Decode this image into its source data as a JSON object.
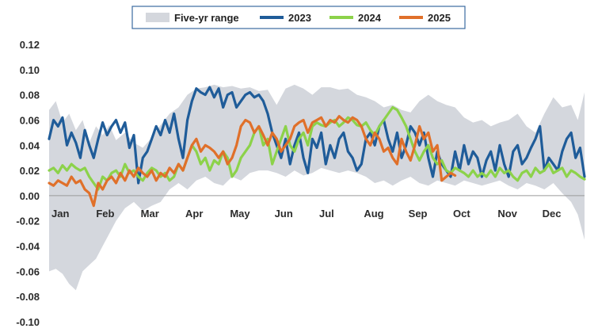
{
  "chart_data": {
    "type": "line",
    "title": "",
    "xlabel": "",
    "ylabel": "",
    "ylim": [
      -0.1,
      0.12
    ],
    "ytick_step": 0.02,
    "yticks": [
      "0.12",
      "0.10",
      "0.08",
      "0.06",
      "0.04",
      "0.02",
      "0.00",
      "-0.02",
      "-0.04",
      "-0.06",
      "-0.08",
      "-0.10"
    ],
    "month_labels": [
      "Jan",
      "Feb",
      "Mar",
      "Apr",
      "May",
      "Jun",
      "Jul",
      "Aug",
      "Sep",
      "Oct",
      "Nov",
      "Dec"
    ],
    "x_unit": "month index (0 = Jan 1, 12 = Dec 31)",
    "legend_position": "top-center",
    "range": {
      "name": "Five-yr range",
      "color": "#d4d7dd",
      "x": [
        0,
        0.15,
        0.3,
        0.45,
        0.6,
        0.75,
        0.9,
        1.05,
        1.2,
        1.35,
        1.5,
        1.7,
        1.9,
        2.1,
        2.3,
        2.5,
        2.7,
        2.9,
        3.1,
        3.3,
        3.5,
        3.7,
        3.9,
        4.1,
        4.3,
        4.5,
        4.7,
        4.9,
        5.1,
        5.3,
        5.5,
        5.7,
        5.9,
        6.1,
        6.3,
        6.5,
        6.7,
        6.9,
        7.1,
        7.3,
        7.5,
        7.7,
        7.9,
        8.1,
        8.3,
        8.5,
        8.7,
        8.9,
        9.1,
        9.3,
        9.5,
        9.7,
        9.9,
        10.1,
        10.3,
        10.5,
        10.7,
        10.9,
        11.1,
        11.3,
        11.5,
        11.7,
        11.85,
        12
      ],
      "high": [
        0.068,
        0.075,
        0.058,
        0.065,
        0.052,
        0.06,
        0.042,
        0.055,
        0.048,
        0.056,
        0.044,
        0.05,
        0.042,
        0.038,
        0.046,
        0.056,
        0.065,
        0.07,
        0.08,
        0.085,
        0.086,
        0.088,
        0.086,
        0.087,
        0.085,
        0.086,
        0.083,
        0.084,
        0.072,
        0.085,
        0.088,
        0.085,
        0.08,
        0.086,
        0.086,
        0.084,
        0.085,
        0.08,
        0.078,
        0.075,
        0.07,
        0.072,
        0.068,
        0.066,
        0.075,
        0.08,
        0.075,
        0.072,
        0.07,
        0.062,
        0.058,
        0.06,
        0.055,
        0.058,
        0.06,
        0.065,
        0.055,
        0.05,
        0.065,
        0.078,
        0.07,
        0.072,
        0.06,
        0.082
      ],
      "low": [
        -0.06,
        -0.058,
        -0.062,
        -0.07,
        -0.075,
        -0.06,
        -0.055,
        -0.05,
        -0.04,
        -0.03,
        -0.02,
        -0.01,
        -0.005,
        -0.012,
        -0.008,
        -0.005,
        0.005,
        0.01,
        0.005,
        0.012,
        0.015,
        0.01,
        0.008,
        0.015,
        0.012,
        0.018,
        0.02,
        0.02,
        0.018,
        0.015,
        0.02,
        0.016,
        0.018,
        0.022,
        0.02,
        0.018,
        0.02,
        0.018,
        0.015,
        0.01,
        0.012,
        0.008,
        0.012,
        0.015,
        0.01,
        0.008,
        0.012,
        0.01,
        0.008,
        0.012,
        0.01,
        0.008,
        0.01,
        0.012,
        0.008,
        0.005,
        0.01,
        0.008,
        0.005,
        0.01,
        0.002,
        -0.005,
        -0.015,
        -0.035
      ]
    },
    "series": [
      {
        "name": "2023",
        "color": "#1f5c99",
        "x": [
          0,
          0.1,
          0.2,
          0.3,
          0.4,
          0.5,
          0.6,
          0.7,
          0.8,
          0.9,
          1.0,
          1.1,
          1.2,
          1.3,
          1.4,
          1.5,
          1.6,
          1.7,
          1.8,
          1.9,
          2.0,
          2.1,
          2.2,
          2.3,
          2.4,
          2.5,
          2.6,
          2.7,
          2.8,
          2.9,
          3.0,
          3.1,
          3.2,
          3.3,
          3.4,
          3.5,
          3.6,
          3.7,
          3.8,
          3.9,
          4.0,
          4.1,
          4.2,
          4.3,
          4.4,
          4.5,
          4.6,
          4.7,
          4.8,
          4.9,
          5.0,
          5.1,
          5.2,
          5.3,
          5.4,
          5.5,
          5.6,
          5.7,
          5.8,
          5.9,
          6.0,
          6.1,
          6.2,
          6.3,
          6.4,
          6.5,
          6.6,
          6.7,
          6.8,
          6.9,
          7.0,
          7.1,
          7.2,
          7.3,
          7.4,
          7.5,
          7.6,
          7.7,
          7.8,
          7.9,
          8.0,
          8.1,
          8.2,
          8.3,
          8.4,
          8.5,
          8.6,
          8.7,
          8.8,
          8.9,
          9.0,
          9.1,
          9.2,
          9.3,
          9.4,
          9.5,
          9.6,
          9.7,
          9.8,
          9.9,
          10.0,
          10.1,
          10.2,
          10.3,
          10.4,
          10.5,
          10.6,
          10.7,
          10.8,
          10.9,
          11.0,
          11.1,
          11.2,
          11.3,
          11.4,
          11.5,
          11.6,
          11.7,
          11.8,
          11.9,
          12.0
        ],
        "y": [
          0.045,
          0.06,
          0.055,
          0.062,
          0.04,
          0.05,
          0.042,
          0.03,
          0.052,
          0.04,
          0.03,
          0.045,
          0.058,
          0.048,
          0.055,
          0.06,
          0.05,
          0.058,
          0.038,
          0.048,
          0.01,
          0.03,
          0.035,
          0.045,
          0.055,
          0.048,
          0.06,
          0.05,
          0.065,
          0.045,
          0.03,
          0.06,
          0.075,
          0.085,
          0.082,
          0.08,
          0.086,
          0.078,
          0.085,
          0.07,
          0.08,
          0.082,
          0.07,
          0.075,
          0.08,
          0.082,
          0.078,
          0.08,
          0.075,
          0.065,
          0.05,
          0.04,
          0.03,
          0.045,
          0.025,
          0.04,
          0.05,
          0.03,
          0.018,
          0.045,
          0.038,
          0.05,
          0.025,
          0.04,
          0.03,
          0.045,
          0.05,
          0.035,
          0.03,
          0.02,
          0.025,
          0.045,
          0.05,
          0.04,
          0.055,
          0.06,
          0.045,
          0.035,
          0.05,
          0.03,
          0.04,
          0.055,
          0.05,
          0.04,
          0.05,
          0.03,
          0.015,
          0.035,
          0.025,
          0.02,
          0.015,
          0.035,
          0.02,
          0.04,
          0.025,
          0.035,
          0.03,
          0.015,
          0.028,
          0.035,
          0.02,
          0.04,
          0.025,
          0.015,
          0.035,
          0.04,
          0.025,
          0.03,
          0.038,
          0.045,
          0.055,
          0.02,
          0.03,
          0.025,
          0.02,
          0.035,
          0.045,
          0.05,
          0.03,
          0.038,
          0.015
        ],
        "x_start_note": "series spans full year"
      },
      {
        "name": "2024",
        "color": "#8cd24a",
        "x": [
          0,
          0.1,
          0.2,
          0.3,
          0.4,
          0.5,
          0.6,
          0.7,
          0.8,
          0.9,
          1.0,
          1.1,
          1.2,
          1.3,
          1.4,
          1.5,
          1.6,
          1.7,
          1.8,
          1.9,
          2.0,
          2.1,
          2.2,
          2.3,
          2.4,
          2.5,
          2.6,
          2.7,
          2.8,
          2.9,
          3.0,
          3.1,
          3.2,
          3.3,
          3.4,
          3.5,
          3.6,
          3.7,
          3.8,
          3.9,
          4.0,
          4.1,
          4.2,
          4.3,
          4.4,
          4.5,
          4.6,
          4.7,
          4.8,
          4.9,
          5.0,
          5.1,
          5.2,
          5.3,
          5.4,
          5.5,
          5.6,
          5.7,
          5.8,
          5.9,
          6.0,
          6.1,
          6.2,
          6.3,
          6.4,
          6.5,
          6.6,
          6.7,
          6.8,
          6.9,
          7.0,
          7.1,
          7.2,
          7.3,
          7.4,
          7.5,
          7.6,
          7.7,
          7.8,
          7.9,
          8.0,
          8.1,
          8.2,
          8.3,
          8.4,
          8.5,
          8.6,
          8.7,
          8.8,
          8.9,
          9.0,
          9.1,
          9.2,
          9.3,
          9.4,
          9.5,
          9.6,
          9.7,
          9.8,
          9.9,
          10.0,
          10.1,
          10.2,
          10.3,
          10.4,
          10.5,
          10.6,
          10.7,
          10.8,
          10.9,
          11.0,
          11.1,
          11.2,
          11.3,
          11.4,
          11.5,
          11.6,
          11.7,
          11.8,
          11.9,
          12.0
        ],
        "y": [
          0.02,
          0.022,
          0.018,
          0.024,
          0.02,
          0.025,
          0.022,
          0.02,
          0.022,
          0.015,
          0.01,
          0.005,
          0.015,
          0.012,
          0.018,
          0.02,
          0.015,
          0.025,
          0.018,
          0.02,
          0.015,
          0.012,
          0.018,
          0.022,
          0.02,
          0.015,
          0.018,
          0.012,
          0.015,
          0.025,
          0.02,
          0.03,
          0.04,
          0.035,
          0.025,
          0.03,
          0.02,
          0.028,
          0.025,
          0.035,
          0.03,
          0.015,
          0.02,
          0.03,
          0.035,
          0.04,
          0.05,
          0.055,
          0.04,
          0.045,
          0.025,
          0.035,
          0.045,
          0.055,
          0.04,
          0.035,
          0.045,
          0.05,
          0.04,
          0.055,
          0.058,
          0.056,
          0.055,
          0.058,
          0.06,
          0.055,
          0.058,
          0.062,
          0.06,
          0.056,
          0.055,
          0.058,
          0.052,
          0.048,
          0.055,
          0.06,
          0.065,
          0.07,
          0.068,
          0.062,
          0.055,
          0.045,
          0.035,
          0.028,
          0.035,
          0.04,
          0.03,
          0.025,
          0.028,
          0.02,
          0.018,
          0.022,
          0.02,
          0.018,
          0.015,
          0.02,
          0.015,
          0.018,
          0.015,
          0.02,
          0.015,
          0.022,
          0.018,
          0.02,
          0.015,
          0.012,
          0.018,
          0.02,
          0.015,
          0.022,
          0.018,
          0.02,
          0.025,
          0.018,
          0.02,
          0.022,
          0.015,
          0.02,
          0.018,
          0.015,
          0.013
        ]
      },
      {
        "name": "2025",
        "color": "#e0702a",
        "x": [
          0,
          0.1,
          0.2,
          0.3,
          0.4,
          0.5,
          0.6,
          0.7,
          0.8,
          0.9,
          1.0,
          1.1,
          1.2,
          1.3,
          1.4,
          1.5,
          1.6,
          1.7,
          1.8,
          1.9,
          2.0,
          2.1,
          2.2,
          2.3,
          2.4,
          2.5,
          2.6,
          2.7,
          2.8,
          2.9,
          3.0,
          3.1,
          3.2,
          3.3,
          3.4,
          3.5,
          3.6,
          3.7,
          3.8,
          3.9,
          4.0,
          4.1,
          4.2,
          4.3,
          4.4,
          4.5,
          4.6,
          4.7,
          4.8,
          4.9,
          5.0,
          5.1,
          5.2,
          5.3,
          5.4,
          5.5,
          5.6,
          5.7,
          5.8,
          5.9,
          6.0,
          6.1,
          6.2,
          6.3,
          6.4,
          6.5,
          6.6,
          6.7,
          6.8,
          6.9,
          7.0,
          7.1,
          7.2,
          7.3,
          7.4,
          7.5,
          7.6,
          7.7,
          7.8,
          7.9,
          8.0,
          8.1,
          8.2,
          8.3,
          8.4,
          8.5,
          8.6,
          8.7,
          8.8,
          8.9,
          9.0,
          9.1
        ],
        "y": [
          0.01,
          0.008,
          0.012,
          0.01,
          0.008,
          0.015,
          0.01,
          0.012,
          0.005,
          0.002,
          -0.008,
          0.01,
          0.005,
          0.012,
          0.015,
          0.01,
          0.018,
          0.012,
          0.02,
          0.015,
          0.022,
          0.018,
          0.015,
          0.02,
          0.012,
          0.018,
          0.015,
          0.022,
          0.018,
          0.025,
          0.02,
          0.03,
          0.04,
          0.045,
          0.035,
          0.04,
          0.038,
          0.035,
          0.03,
          0.035,
          0.025,
          0.03,
          0.04,
          0.055,
          0.06,
          0.058,
          0.05,
          0.055,
          0.048,
          0.04,
          0.05,
          0.045,
          0.035,
          0.04,
          0.045,
          0.055,
          0.058,
          0.06,
          0.05,
          0.058,
          0.06,
          0.062,
          0.055,
          0.06,
          0.058,
          0.063,
          0.06,
          0.058,
          0.062,
          0.06,
          0.055,
          0.045,
          0.04,
          0.05,
          0.045,
          0.035,
          0.038,
          0.03,
          0.025,
          0.045,
          0.035,
          0.028,
          0.04,
          0.055,
          0.045,
          0.05,
          0.035,
          0.04,
          0.012,
          0.015,
          0.018,
          0.016
        ]
      }
    ]
  }
}
